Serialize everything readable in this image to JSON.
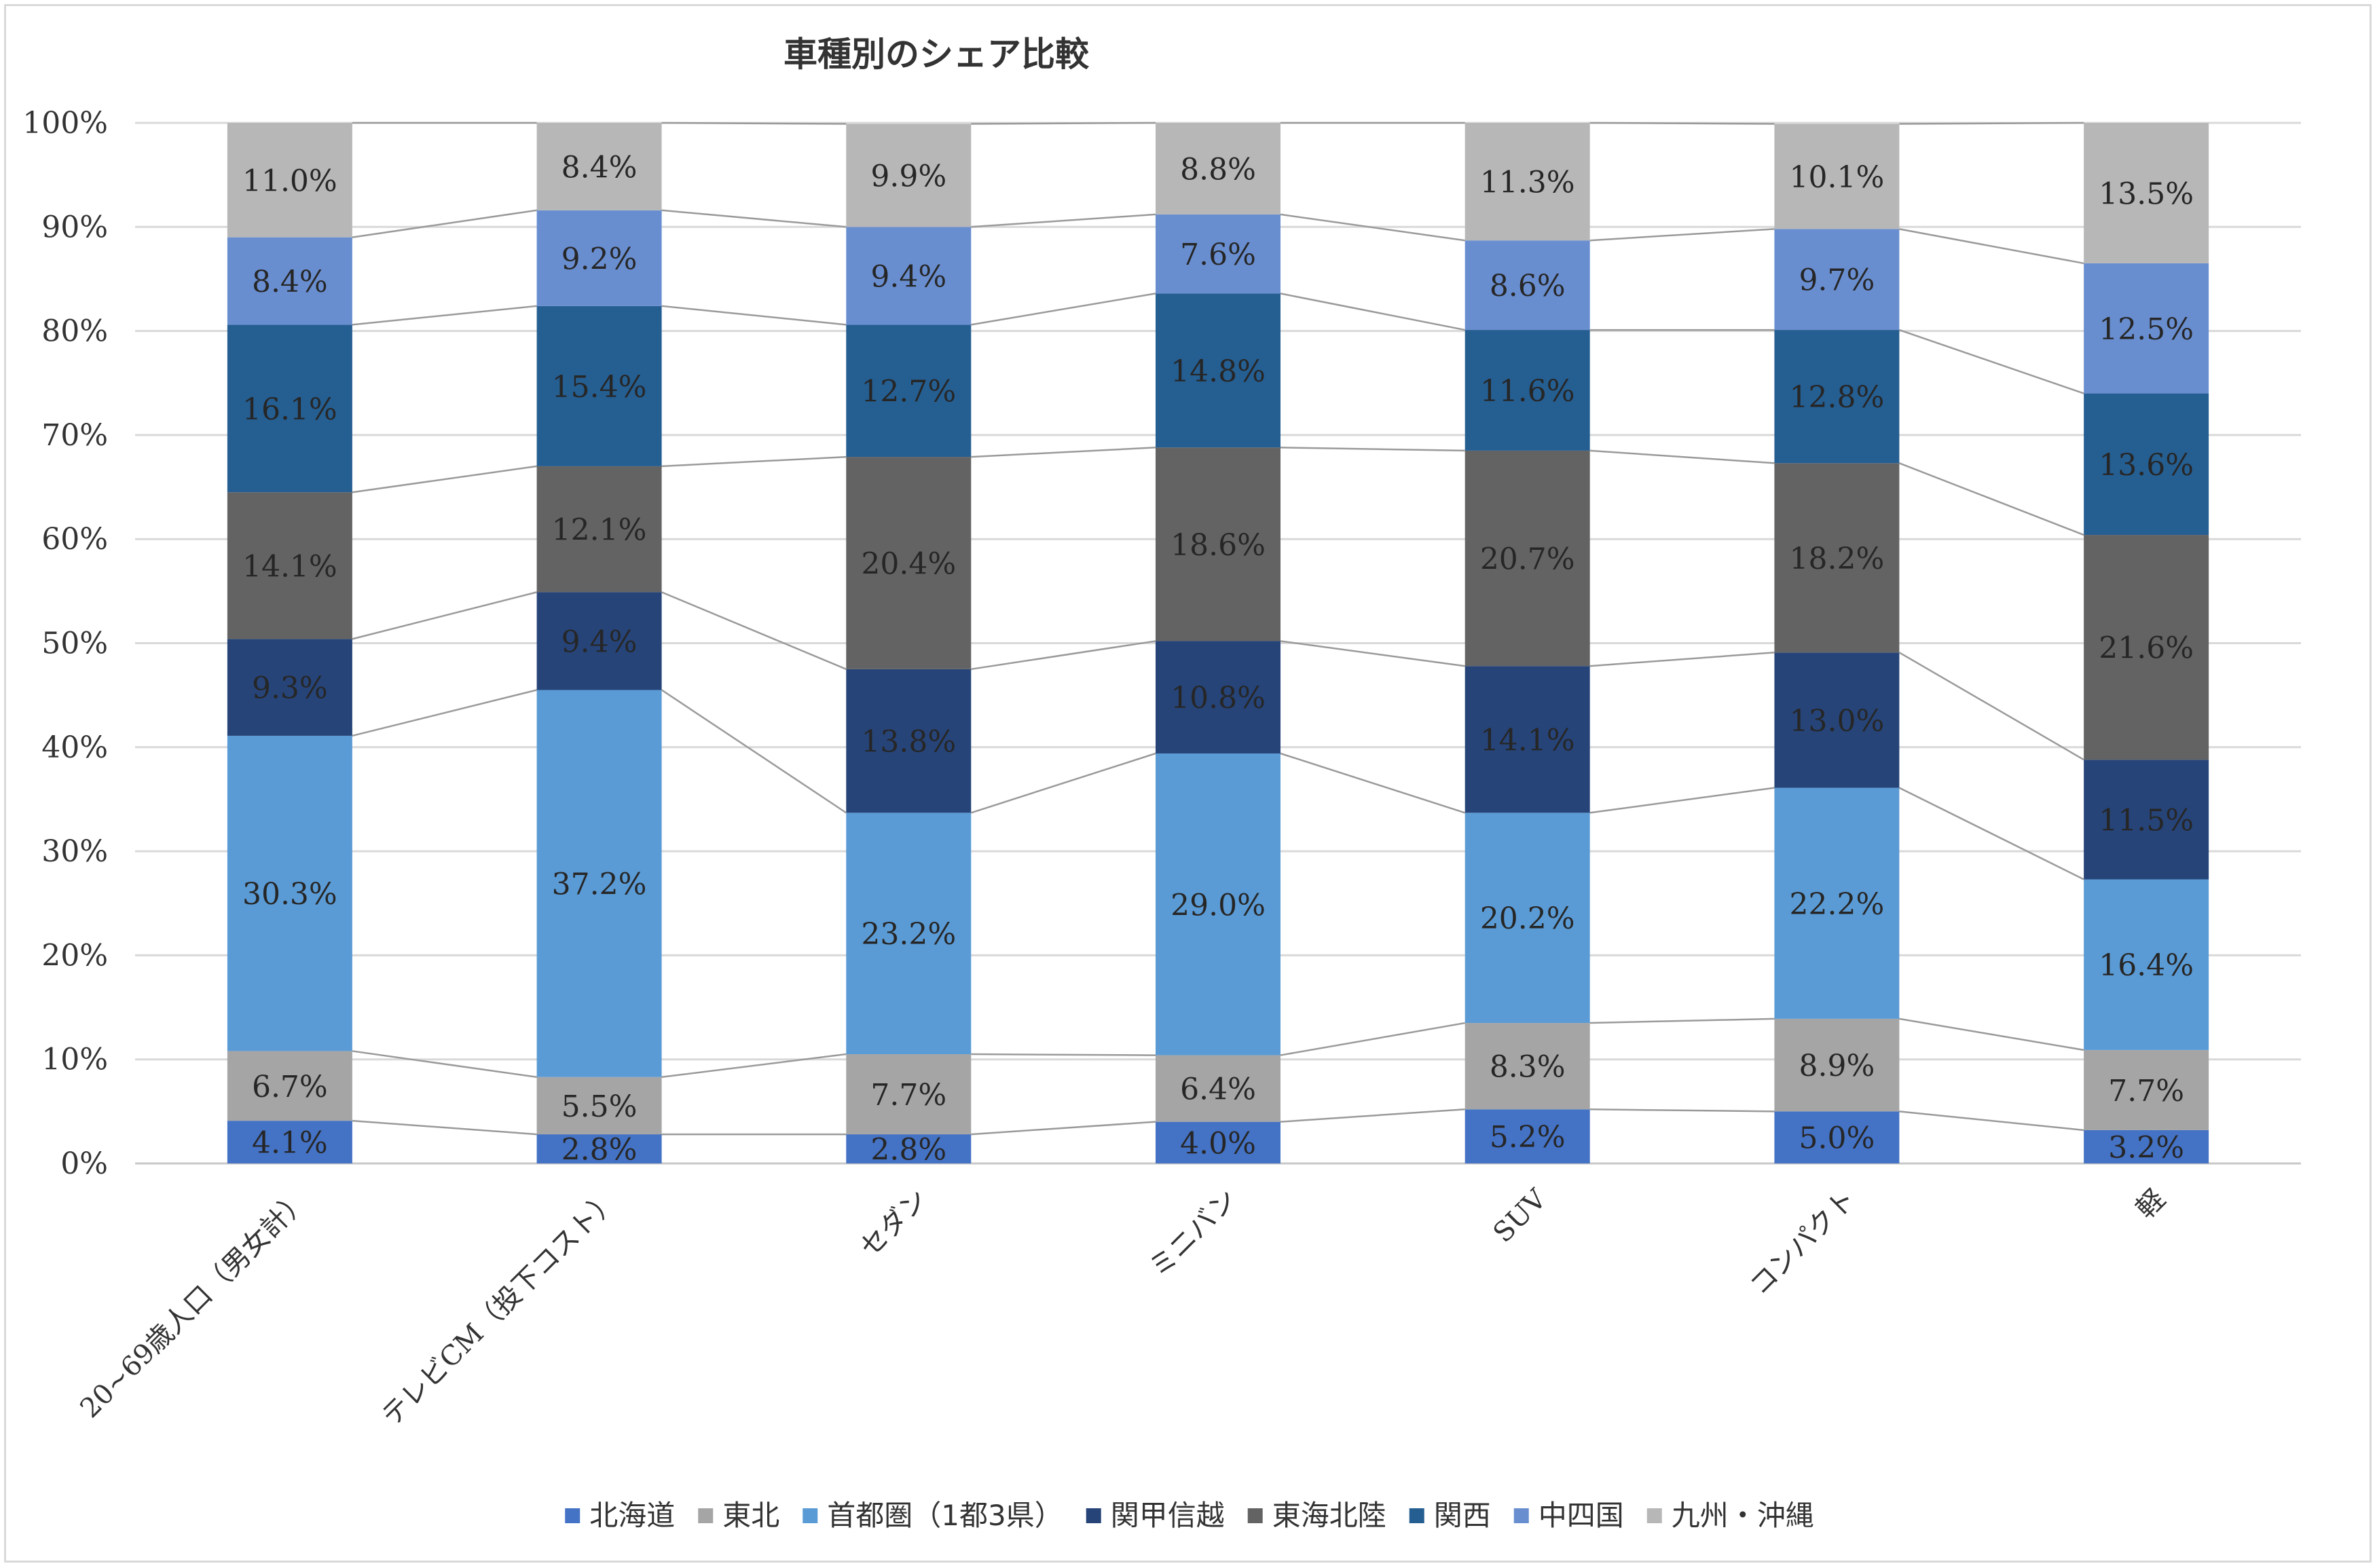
{
  "chart_data": {
    "type": "bar",
    "stacked": true,
    "percent_stacked": true,
    "title": "車種別のシェア比較",
    "xlabel": "",
    "ylabel": "",
    "ylim": [
      0,
      100
    ],
    "yticks": [
      "0%",
      "10%",
      "20%",
      "30%",
      "40%",
      "50%",
      "60%",
      "70%",
      "80%",
      "90%",
      "100%"
    ],
    "grid": true,
    "series_lines": true,
    "legend_position": "bottom",
    "categories": [
      "20~69歳人口（男女計）",
      "テレビCM（投下コスト）",
      "セダン",
      "ミニバン",
      "SUV",
      "コンパクト",
      "軽"
    ],
    "series": [
      {
        "name": "北海道",
        "color": "#4472c4",
        "values": [
          4.1,
          2.8,
          2.8,
          4.0,
          5.2,
          5.0,
          3.2
        ],
        "labels": [
          "4.1%",
          "2.8%",
          "2.8%",
          "4.0%",
          "5.2%",
          "5.0%",
          "3.2%"
        ]
      },
      {
        "name": "東北",
        "color": "#a5a5a5",
        "values": [
          6.7,
          5.5,
          7.7,
          6.4,
          8.3,
          8.9,
          7.7
        ],
        "labels": [
          "6.7%",
          "5.5%",
          "7.7%",
          "6.4%",
          "8.3%",
          "8.9%",
          "7.7%"
        ]
      },
      {
        "name": "首都圏（1都3県）",
        "color": "#5b9bd5",
        "values": [
          30.3,
          37.2,
          23.2,
          29.0,
          20.2,
          22.2,
          16.4
        ],
        "labels": [
          "30.3%",
          "37.2%",
          "23.2%",
          "29.0%",
          "20.2%",
          "22.2%",
          "16.4%"
        ]
      },
      {
        "name": "関甲信越",
        "color": "#264478",
        "values": [
          9.3,
          9.4,
          13.8,
          10.8,
          14.1,
          13.0,
          11.5
        ],
        "labels": [
          "9.3%",
          "9.4%",
          "13.8%",
          "10.8%",
          "14.1%",
          "13.0%",
          "11.5%"
        ]
      },
      {
        "name": "東海北陸",
        "color": "#636363",
        "values": [
          14.1,
          12.1,
          20.4,
          18.6,
          20.7,
          18.2,
          21.6
        ],
        "labels": [
          "14.1%",
          "12.1%",
          "20.4%",
          "18.6%",
          "20.7%",
          "18.2%",
          "21.6%"
        ]
      },
      {
        "name": "関西",
        "color": "#255e91",
        "values": [
          16.1,
          15.4,
          12.7,
          14.8,
          11.6,
          12.8,
          13.6
        ],
        "labels": [
          "16.1%",
          "15.4%",
          "12.7%",
          "14.8%",
          "11.6%",
          "12.8%",
          "13.6%"
        ]
      },
      {
        "name": "中四国",
        "color": "#698ed0",
        "values": [
          8.4,
          9.2,
          9.4,
          7.6,
          8.6,
          9.7,
          12.5
        ],
        "labels": [
          "8.4%",
          "9.2%",
          "9.4%",
          "7.6%",
          "8.6%",
          "9.7%",
          "12.5%"
        ]
      },
      {
        "name": "九州・沖縄",
        "color": "#b7b7b7",
        "values": [
          11.0,
          8.4,
          9.9,
          8.8,
          11.3,
          10.1,
          13.5
        ],
        "labels": [
          "11.0%",
          "8.4%",
          "9.9%",
          "8.8%",
          "11.3%",
          "10.1%",
          "13.5%"
        ]
      }
    ]
  }
}
